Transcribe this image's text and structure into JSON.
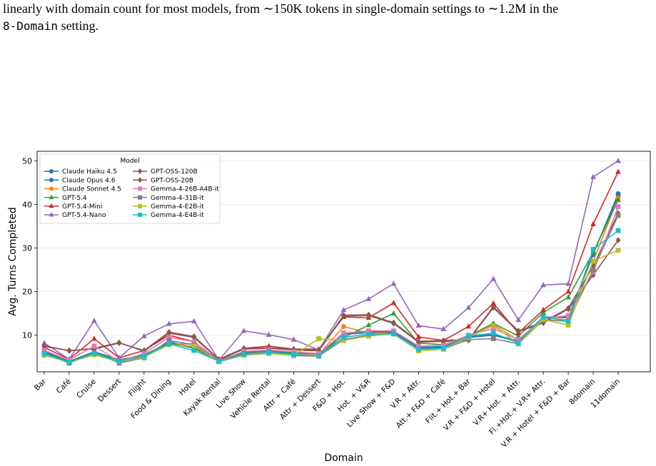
{
  "caption": {
    "line1": "linearly with domain count for most models, from ∼150K tokens in single-domain settings to ∼1.2M in the",
    "line2_code": "8-Domain",
    "line2_rest": " setting."
  },
  "chart_data": {
    "type": "line",
    "title": "",
    "xlabel": "Domain",
    "ylabel": "Avg. Turns Completed",
    "ylim": [
      1.6,
      52.2
    ],
    "yticks": [
      10,
      20,
      30,
      40,
      50
    ],
    "grid": "horizontal",
    "legend_title": "Model",
    "legend_position": "top-left",
    "categories": [
      "Bar",
      "Café",
      "Cruise",
      "Dessert",
      "Flight",
      "Food & Dining",
      "Hotel",
      "Kayak Rental",
      "Live Show",
      "Vehicle Rental",
      "Attr + Café",
      "Attr + Dessert",
      "F&D + Hot.",
      "Hot. + V&R",
      "Live Show + F&D",
      "V.R + Attr.",
      "Att.+ F&D + Café",
      "Flit.+ Hot.+ Bar",
      "V.R + F&D + Hotel",
      "V.R+ Hot. + Attr.",
      "Fl.+Hot.+ V.R+ Attr.",
      "V.R + Hotel + F&D + Bar",
      "8domain",
      "11domain"
    ],
    "series": [
      {
        "name": "Claude Haiku 4.5",
        "color": "#1f77b4",
        "marker": "circle",
        "values": [
          6.0,
          3.9,
          6.0,
          4.2,
          5.2,
          8.3,
          7.0,
          4.0,
          5.8,
          6.2,
          5.8,
          5.6,
          10.2,
          10.6,
          10.6,
          7.0,
          7.2,
          9.5,
          10.0,
          8.5,
          14.0,
          14.2,
          28.5,
          42.5
        ]
      },
      {
        "name": "Claude Opus 4.6",
        "color": "#1f77b4",
        "marker": "circle",
        "values": [
          6.2,
          4.0,
          6.2,
          4.4,
          5.3,
          8.5,
          7.2,
          4.1,
          6.0,
          6.4,
          6.0,
          5.7,
          10.5,
          10.8,
          10.8,
          7.2,
          7.4,
          9.6,
          10.2,
          8.7,
          14.2,
          14.0,
          28.8,
          42.0
        ]
      },
      {
        "name": "Claude Sonnet 4.5",
        "color": "#ff7f0e",
        "marker": "circle",
        "values": [
          5.6,
          4.0,
          5.8,
          4.3,
          5.0,
          8.0,
          8.0,
          4.0,
          5.5,
          6.0,
          5.6,
          5.6,
          12.0,
          10.5,
          10.5,
          6.8,
          7.0,
          9.8,
          12.5,
          8.8,
          14.0,
          13.5,
          27.0,
          41.5
        ]
      },
      {
        "name": "GPT-5.4",
        "color": "#2ca02c",
        "marker": "triangle",
        "values": [
          5.8,
          4.0,
          6.0,
          4.2,
          5.5,
          8.2,
          7.2,
          4.2,
          6.2,
          6.6,
          6.0,
          5.8,
          9.5,
          12.3,
          15.0,
          8.2,
          7.8,
          9.8,
          12.7,
          9.8,
          15.2,
          18.7,
          29.0,
          41.0
        ]
      },
      {
        "name": "GPT-5.4-Mini",
        "color": "#d62728",
        "marker": "triangle",
        "values": [
          7.2,
          4.5,
          9.2,
          4.8,
          6.5,
          10.0,
          8.5,
          4.2,
          7.0,
          7.5,
          6.8,
          6.8,
          14.2,
          14.0,
          17.4,
          9.6,
          8.8,
          12.0,
          17.3,
          10.5,
          15.8,
          20.0,
          35.5,
          47.5
        ]
      },
      {
        "name": "GPT-5.4-Nano",
        "color": "#9467bd",
        "marker": "triangle",
        "values": [
          8.2,
          4.5,
          13.3,
          4.8,
          9.8,
          12.6,
          13.2,
          4.3,
          11.0,
          10.1,
          9.0,
          6.6,
          15.8,
          18.3,
          21.8,
          12.2,
          11.4,
          16.3,
          22.9,
          13.5,
          21.5,
          21.8,
          46.3,
          50.0
        ]
      },
      {
        "name": "GPT-OSS-120B",
        "color": "#8c564b",
        "marker": "diamond",
        "values": [
          7.4,
          6.5,
          6.8,
          8.2,
          6.5,
          10.7,
          9.7,
          4.5,
          7.0,
          7.1,
          6.8,
          6.5,
          14.6,
          14.7,
          12.9,
          8.6,
          8.8,
          9.0,
          16.5,
          11.0,
          13.0,
          16.2,
          25.8,
          38.0
        ]
      },
      {
        "name": "GPT-OSS-20B",
        "color": "#8c564b",
        "marker": "diamond",
        "values": [
          7.6,
          6.4,
          7.0,
          8.3,
          6.3,
          10.5,
          9.5,
          4.4,
          6.8,
          7.0,
          6.6,
          6.4,
          14.4,
          14.5,
          12.7,
          8.4,
          8.6,
          8.8,
          16.3,
          10.8,
          12.8,
          16.0,
          23.8,
          31.8
        ]
      },
      {
        "name": "Gemma-4-26B-A4B-it",
        "color": "#e377c2",
        "marker": "square",
        "values": [
          6.5,
          4.3,
          7.5,
          4.0,
          5.8,
          9.5,
          8.5,
          4.1,
          6.3,
          6.6,
          6.2,
          5.8,
          10.5,
          11.0,
          11.0,
          7.5,
          7.7,
          10.0,
          11.5,
          9.0,
          13.8,
          14.5,
          24.5,
          39.5
        ]
      },
      {
        "name": "Gemma-4-31B-it",
        "color": "#7f7f7f",
        "marker": "square",
        "values": [
          5.8,
          3.6,
          6.0,
          3.6,
          4.8,
          8.8,
          7.8,
          4.0,
          5.8,
          6.3,
          5.3,
          5.2,
          9.0,
          10.0,
          10.5,
          6.8,
          6.8,
          9.0,
          9.2,
          8.0,
          13.5,
          13.2,
          25.0,
          37.5
        ]
      },
      {
        "name": "Gemma-4-E2B-it",
        "color": "#bcbd22",
        "marker": "square",
        "values": [
          5.4,
          3.8,
          5.5,
          3.9,
          5.0,
          7.8,
          7.5,
          3.9,
          5.4,
          5.8,
          5.4,
          9.2,
          8.8,
          9.8,
          10.3,
          6.4,
          6.8,
          9.5,
          12.2,
          8.0,
          13.6,
          12.3,
          27.0,
          29.5
        ]
      },
      {
        "name": "Gemma-4-E4B-it",
        "color": "#17becf",
        "marker": "square",
        "values": [
          5.7,
          3.8,
          5.8,
          4.0,
          5.2,
          8.0,
          6.5,
          4.0,
          5.6,
          6.0,
          5.6,
          5.3,
          9.5,
          10.3,
          10.3,
          6.8,
          7.0,
          9.8,
          10.5,
          8.2,
          14.2,
          13.2,
          29.7,
          34.0
        ]
      }
    ]
  }
}
